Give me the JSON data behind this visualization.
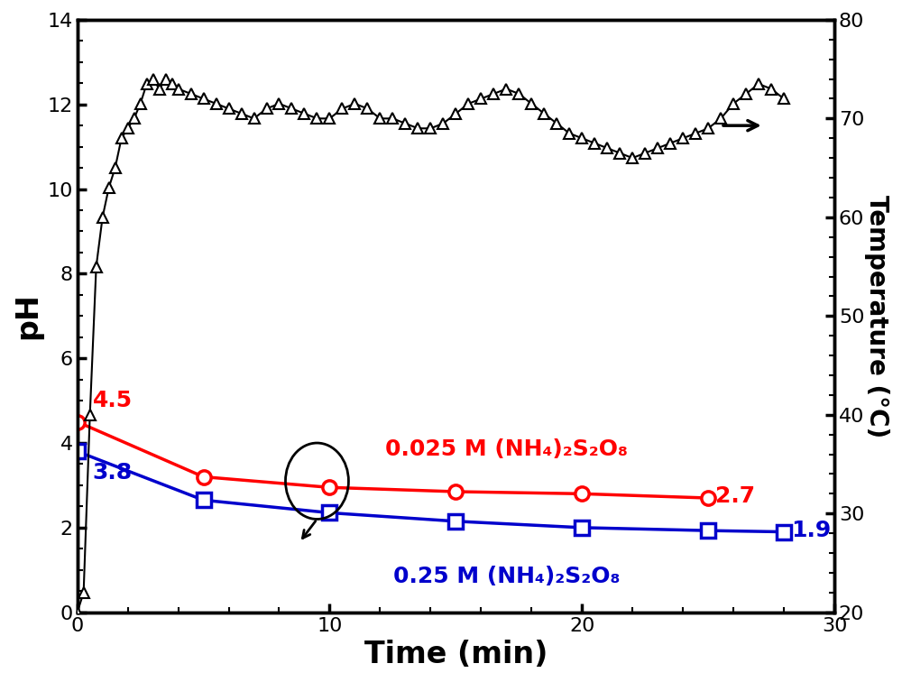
{
  "temp_time": [
    0,
    0.25,
    0.5,
    0.75,
    1.0,
    1.25,
    1.5,
    1.75,
    2.0,
    2.25,
    2.5,
    2.75,
    3.0,
    3.25,
    3.5,
    3.75,
    4.0,
    4.5,
    5.0,
    5.5,
    6.0,
    6.5,
    7.0,
    7.5,
    8.0,
    8.5,
    9.0,
    9.5,
    10.0,
    10.5,
    11.0,
    11.5,
    12.0,
    12.5,
    13.0,
    13.5,
    14.0,
    14.5,
    15.0,
    15.5,
    16.0,
    16.5,
    17.0,
    17.5,
    18.0,
    18.5,
    19.0,
    19.5,
    20.0,
    20.5,
    21.0,
    21.5,
    22.0,
    22.5,
    23.0,
    23.5,
    24.0,
    24.5,
    25.0,
    25.5,
    26.0,
    26.5,
    27.0,
    27.5,
    28.0
  ],
  "temp_values": [
    20,
    22,
    40,
    55,
    60,
    63,
    65,
    68,
    69,
    70,
    71.5,
    73.5,
    74,
    73,
    74,
    73.5,
    73,
    72.5,
    72,
    71.5,
    71,
    70.5,
    70,
    71,
    71.5,
    71,
    70.5,
    70,
    70,
    71,
    71.5,
    71,
    70,
    70,
    69.5,
    69,
    69,
    69.5,
    70.5,
    71.5,
    72,
    72.5,
    73,
    72.5,
    71.5,
    70.5,
    69.5,
    68.5,
    68.0,
    67.5,
    67.0,
    66.5,
    66.0,
    66.5,
    67.0,
    67.5,
    68.0,
    68.5,
    69.0,
    70.0,
    71.5,
    72.5,
    73.5,
    73.0,
    72.0
  ],
  "red_ph_time": [
    0,
    5,
    10,
    15,
    20,
    25
  ],
  "red_ph_values": [
    4.5,
    3.2,
    2.95,
    2.85,
    2.8,
    2.7
  ],
  "blue_ph_time": [
    0,
    5,
    10,
    15,
    20,
    25,
    28
  ],
  "blue_ph_values": [
    3.8,
    2.65,
    2.35,
    2.15,
    2.0,
    1.93,
    1.9
  ],
  "xlim": [
    0,
    30
  ],
  "ylim_left": [
    0,
    14
  ],
  "ylim_right": [
    20,
    80
  ],
  "xlabel": "Time (min)",
  "ylabel_left": "pH",
  "ylabel_right": "Temperature (°C)",
  "red_label": "0.025 M (NH₄)₂S₂O₈",
  "blue_label": "0.25 M (NH₄)₂S₂O₈",
  "red_color": "#FF0000",
  "blue_color": "#0000CC",
  "black_color": "#000000",
  "xticks": [
    0,
    10,
    20,
    30
  ],
  "yticks_left": [
    0,
    2,
    4,
    6,
    8,
    10,
    12,
    14
  ],
  "yticks_right": [
    20,
    30,
    40,
    50,
    60,
    70,
    80
  ]
}
